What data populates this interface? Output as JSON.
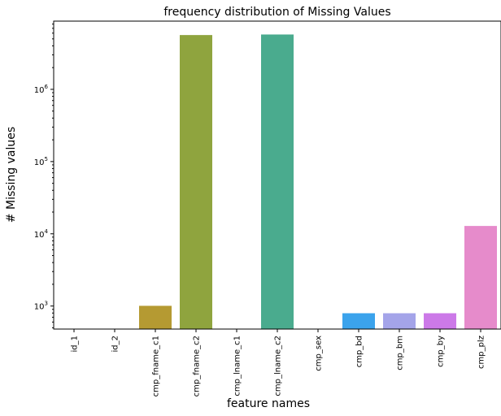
{
  "chart_data": {
    "type": "bar",
    "title": "frequency distribution of Missing Values",
    "xlabel": "feature names",
    "ylabel": "# Missing values",
    "yscale": "log",
    "ylim": [
      480,
      8800000
    ],
    "y_ticks": [
      {
        "value": 1000,
        "base": "10",
        "exp": "3"
      },
      {
        "value": 10000,
        "base": "10",
        "exp": "4"
      },
      {
        "value": 100000,
        "base": "10",
        "exp": "5"
      },
      {
        "value": 1000000,
        "base": "10",
        "exp": "6"
      }
    ],
    "grid": false,
    "legend": "none",
    "categories": [
      "id_1",
      "id_2",
      "cmp_fname_c1",
      "cmp_fname_c2",
      "cmp_lname_c1",
      "cmp_lname_c2",
      "cmp_sex",
      "cmp_bd",
      "cmp_bm",
      "cmp_by",
      "cmp_plz"
    ],
    "values": [
      0,
      0,
      1007,
      5645434,
      0,
      5746668,
      0,
      795,
      795,
      795,
      12843
    ],
    "colors": [
      "#f77189",
      "#e48932",
      "#b59a32",
      "#8fa43e",
      "#50b131",
      "#4aab8e",
      "#36ada4",
      "#3ba3ec",
      "#a4a4e9",
      "#cc79e8",
      "#e68bcb"
    ]
  }
}
